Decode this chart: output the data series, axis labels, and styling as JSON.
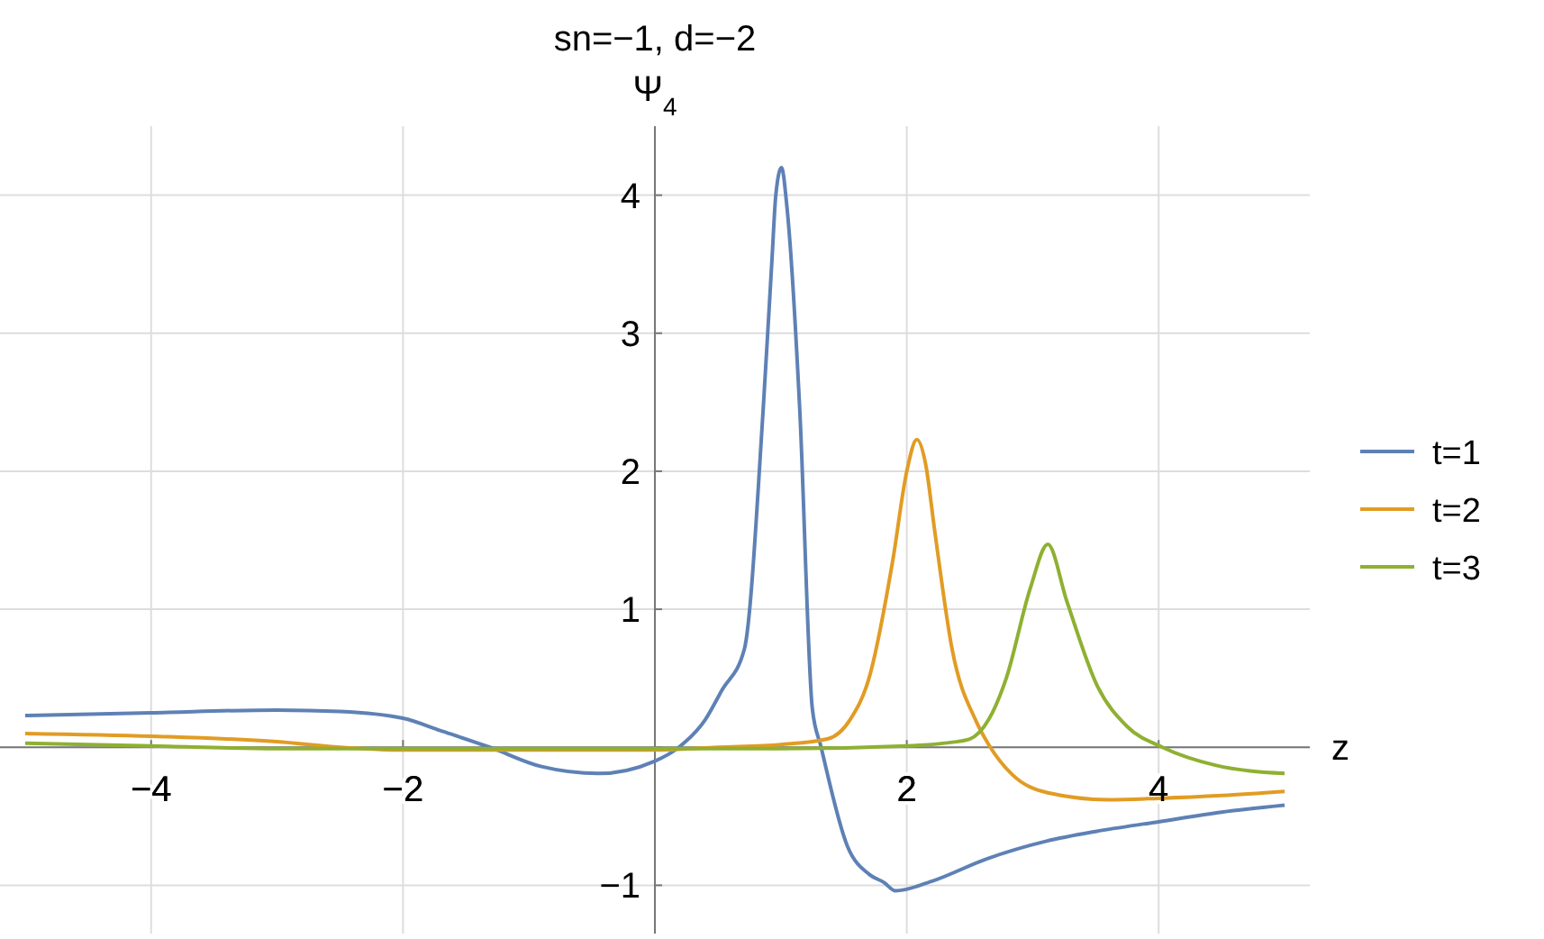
{
  "chart_data": {
    "type": "line",
    "title": "sn=−1, d=−2",
    "ylabel": "Ψ$_{4}$",
    "xlabel": "z",
    "xlim": [
      -5.2,
      5.2
    ],
    "ylim": [
      -1.35,
      4.5
    ],
    "xticks": [
      -4,
      -2,
      {
        "value": 0,
        "label": null
      },
      2,
      4
    ],
    "yticks": [
      -1,
      {
        "value": 0,
        "label": null
      },
      1,
      2,
      3,
      4
    ],
    "grid": true,
    "legend": "right",
    "marker": "none",
    "line_style": "solid",
    "series": [
      {
        "name": "t=1",
        "color": "#5e81b5",
        "x": [
          -5,
          -4,
          -3,
          -2.5,
          -2,
          -1.7,
          -1.31,
          -0.9,
          -0.45,
          0,
          0.19,
          0.4,
          0.53,
          0.71,
          0.86,
          0.93,
          0.96,
          1.005,
          1.05,
          1.15,
          1.25,
          1.32,
          1.53,
          1.7,
          1.82,
          1.91,
          2.2,
          2.63,
          3.11,
          3.5,
          4,
          4.5,
          5
        ],
        "values": [
          0.23,
          0.25,
          0.27,
          0.26,
          0.21,
          0.12,
          0,
          -0.14,
          -0.19,
          -0.1,
          0,
          0.2,
          0.41,
          0.71,
          2.45,
          3.54,
          4.0,
          4.2,
          3.9,
          2.45,
          0.28,
          0,
          -0.72,
          -0.92,
          -0.98,
          -1.04,
          -0.97,
          -0.81,
          -0.68,
          -0.61,
          -0.54,
          -0.47,
          -0.42
        ]
      },
      {
        "name": "t=2",
        "color": "#e19c24",
        "x": [
          -5,
          -4,
          -3,
          -2.5,
          -2,
          -1,
          0,
          0.5,
          1,
          1.37,
          1.55,
          1.7,
          1.89,
          2.0,
          2.08,
          2.15,
          2.22,
          2.36,
          2.55,
          2.65,
          2.84,
          3.12,
          3.6,
          4,
          4.5,
          5
        ],
        "values": [
          0.1,
          0.08,
          0.04,
          0,
          -0.02,
          -0.02,
          -0.02,
          0,
          0.02,
          0.06,
          0.2,
          0.5,
          1.36,
          2.0,
          2.23,
          2.05,
          1.58,
          0.71,
          0.19,
          0.02,
          -0.2,
          -0.33,
          -0.38,
          -0.37,
          -0.35,
          -0.32
        ]
      },
      {
        "name": "t=3",
        "color": "#8fb032",
        "x": [
          -5,
          -4,
          -3,
          -2,
          -1,
          0,
          1,
          2,
          2.3,
          2.5,
          2.65,
          2.79,
          2.98,
          3.12,
          3.27,
          3.51,
          3.75,
          4.03,
          4.45,
          5
        ],
        "values": [
          0.03,
          0.01,
          -0.01,
          -0.01,
          -0.01,
          -0.01,
          -0.01,
          0.01,
          0.03,
          0.06,
          0.2,
          0.5,
          1.15,
          1.47,
          1.06,
          0.45,
          0.15,
          0,
          -0.13,
          -0.19
        ]
      }
    ]
  }
}
